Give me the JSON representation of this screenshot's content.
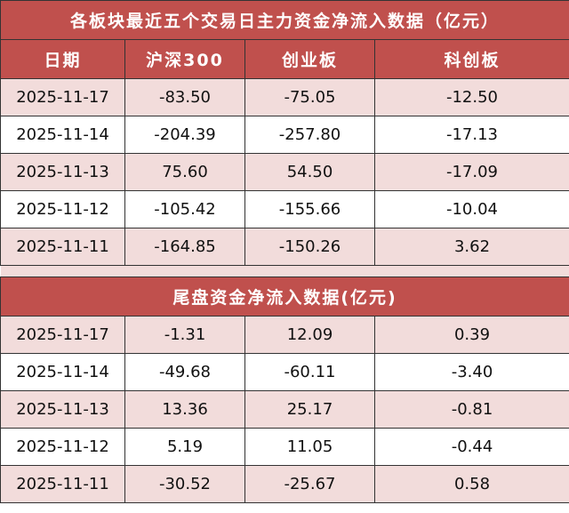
{
  "table1": {
    "title": "各板块最近五个交易日主力资金净流入数据（亿元）",
    "headers": [
      "日期",
      "沪深300",
      "创业板",
      "科创板"
    ],
    "rows": [
      [
        "2025-11-17",
        "-83.50",
        "-75.05",
        "-12.50"
      ],
      [
        "2025-11-14",
        "-204.39",
        "-257.80",
        "-17.13"
      ],
      [
        "2025-11-13",
        "75.60",
        "54.50",
        "-17.09"
      ],
      [
        "2025-11-12",
        "-105.42",
        "-155.66",
        "-10.04"
      ],
      [
        "2025-11-11",
        "-164.85",
        "-150.26",
        "3.62"
      ]
    ]
  },
  "table2": {
    "title": "尾盘资金净流入数据(亿元)",
    "rows": [
      [
        "2025-11-17",
        "-1.31",
        "12.09",
        "0.39"
      ],
      [
        "2025-11-14",
        "-49.68",
        "-60.11",
        "-3.40"
      ],
      [
        "2025-11-13",
        "13.36",
        "25.17",
        "-0.81"
      ],
      [
        "2025-11-12",
        "5.19",
        "11.05",
        "-0.44"
      ],
      [
        "2025-11-11",
        "-30.52",
        "-25.67",
        "0.58"
      ]
    ]
  },
  "colors": {
    "header": "#C0504D",
    "row_alt": "#F2DCDB"
  }
}
